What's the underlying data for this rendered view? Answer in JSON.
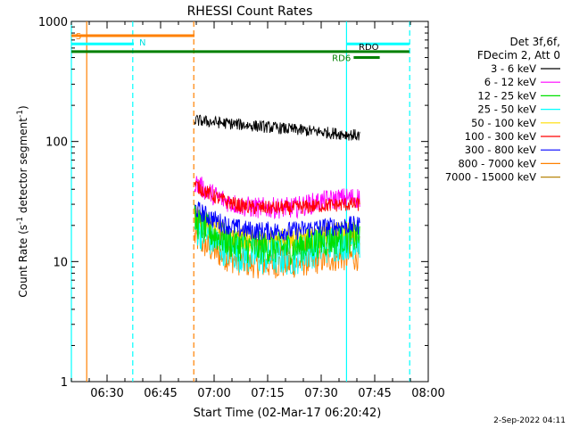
{
  "chart_data": {
    "type": "line",
    "title": "RHESSI Count Rates",
    "xlabel": "Start Time (02-Mar-17 06:20:42)",
    "ylabel_main": "Count Rate (s",
    "ylabel_sup1": "-1",
    "ylabel_mid": " detector segment",
    "ylabel_sup2": "-1",
    "ylabel_end": ")",
    "yscale": "log",
    "ylim": [
      1,
      1000
    ],
    "xlim_minutes_after_0620": [
      0,
      100
    ],
    "x_tick_labels": [
      "06:30",
      "06:45",
      "07:00",
      "07:15",
      "07:30",
      "07:45",
      "08:00"
    ],
    "x_tick_minutes_after_0620": [
      10,
      25,
      40,
      55,
      70,
      85,
      100
    ],
    "y_tick_labels": [
      "1",
      "10",
      "100",
      "1000"
    ],
    "y_tick_values": [
      1,
      10,
      100,
      1000
    ],
    "legend_title_1": "Det 3f,6f,",
    "legend_title_2": "FDecim 2, Att 0",
    "legend_placement": "right",
    "data_start_minute": 34.5,
    "data_end_minute": 80.8,
    "series": [
      {
        "name": "3 - 6 keV",
        "color": "#000000",
        "start": 150,
        "end": 112,
        "noise": 0.05
      },
      {
        "name": "6 - 12 keV",
        "color": "#ff00ff",
        "start": 46,
        "mid": 28,
        "end": 34,
        "noise": 0.09
      },
      {
        "name": "12 - 25 keV",
        "color": "#00e000",
        "start": 22,
        "mid": 13,
        "end": 16,
        "noise": 0.14
      },
      {
        "name": "25 - 50 keV",
        "color": "#00ffff",
        "start": 20,
        "mid": 11,
        "end": 15,
        "noise": 0.16
      },
      {
        "name": "50 - 100 keV",
        "color": "#ffdd00",
        "start": 24,
        "mid": 15,
        "end": 17,
        "noise": 0.11
      },
      {
        "name": "100 - 300 keV",
        "color": "#ff0000",
        "start": 44,
        "mid": 28,
        "end": 30,
        "noise": 0.06
      },
      {
        "name": "300 - 800 keV",
        "color": "#0000ff",
        "start": 28,
        "mid": 18,
        "end": 20,
        "noise": 0.08
      },
      {
        "name": "800 - 7000 keV",
        "color": "#ff8000",
        "start": 16,
        "mid": 9.5,
        "end": 11,
        "noise": 0.12
      },
      {
        "name": "7000 - 15000 keV",
        "color": "#b8860b",
        "start": 22,
        "mid": 14,
        "end": 16,
        "noise": 0.1
      }
    ],
    "vertical_lines": [
      {
        "minute": 0,
        "color": "#00ffff",
        "style": "solid"
      },
      {
        "minute": 4.3,
        "color": "#ff8000",
        "style": "solid"
      },
      {
        "minute": 17.2,
        "color": "#00ffff",
        "style": "dashed"
      },
      {
        "minute": 34.3,
        "color": "#ff8000",
        "style": "dashed"
      },
      {
        "minute": 77.1,
        "color": "#00ffff",
        "style": "solid"
      },
      {
        "minute": 94.8,
        "color": "#00ffff",
        "style": "dashed"
      }
    ],
    "flag_bars": [
      {
        "label": "S",
        "color": "#ff8000",
        "from": 0,
        "to": 34.5,
        "value": 760
      },
      {
        "label": "N",
        "color": "#00ffff",
        "from": 0,
        "to": 17.5,
        "value": 650
      },
      {
        "label": "",
        "color": "#00ffff",
        "from": 77.2,
        "to": 94.7,
        "value": 650
      },
      {
        "label": "RDO",
        "color": "#008000",
        "from": 0,
        "to": 94.7,
        "value": 560
      },
      {
        "label": "RD6",
        "color": "#008000",
        "from": 79.1,
        "to": 86.4,
        "value": 500
      }
    ],
    "flag_label_S": "S",
    "flag_label_N": "N",
    "flag_label_RDO": "RDO",
    "flag_label_RD6": "RD6",
    "colors": {
      "background": "#ffffff",
      "axes": "#000000"
    }
  },
  "footer_timestamp": "2-Sep-2022 04:11"
}
